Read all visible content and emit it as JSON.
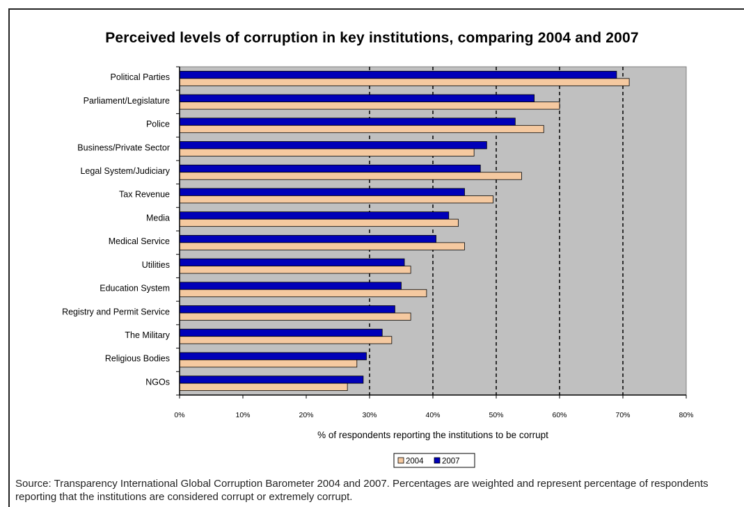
{
  "chart_data": {
    "type": "bar",
    "orientation": "horizontal",
    "title": "Perceived levels of corruption in key institutions, comparing 2004 and 2007",
    "xlabel": "% of respondents reporting the institutions to be corrupt",
    "ylabel": "",
    "xlim": [
      0,
      80
    ],
    "xticks": [
      "0%",
      "10%",
      "20%",
      "30%",
      "40%",
      "50%",
      "60%",
      "70%",
      "80%"
    ],
    "categories": [
      "Political Parties",
      "Parliament/Legislature",
      "Police",
      "Business/Private Sector",
      "Legal System/Judiciary",
      "Tax Revenue",
      "Media",
      "Medical Service",
      "Utilities",
      "Education System",
      "Registry and Permit Service",
      "The Military",
      "Religious Bodies",
      "NGOs"
    ],
    "series": [
      {
        "name": "2007",
        "color": "#0000b8",
        "values": [
          69,
          56,
          53,
          48.5,
          47.5,
          45,
          42.5,
          40.5,
          35.5,
          35,
          34,
          32,
          29.5,
          29
        ]
      },
      {
        "name": "2004",
        "color": "#f5c9a0",
        "values": [
          71,
          60,
          57.5,
          46.5,
          54,
          49.5,
          44,
          45,
          36.5,
          39,
          36.5,
          33.5,
          28,
          26.5
        ]
      }
    ],
    "legend": "bottom",
    "legend_order": [
      "2004",
      "2007"
    ],
    "grid": "vertical dashed from 30%",
    "plot_background": "#c0c0c0"
  },
  "source_note": "Source: Transparency International Global Corruption Barometer 2004 and 2007. Percentages are weighted and represent percentage of respondents reporting that the institutions are considered corrupt or extremely corrupt."
}
